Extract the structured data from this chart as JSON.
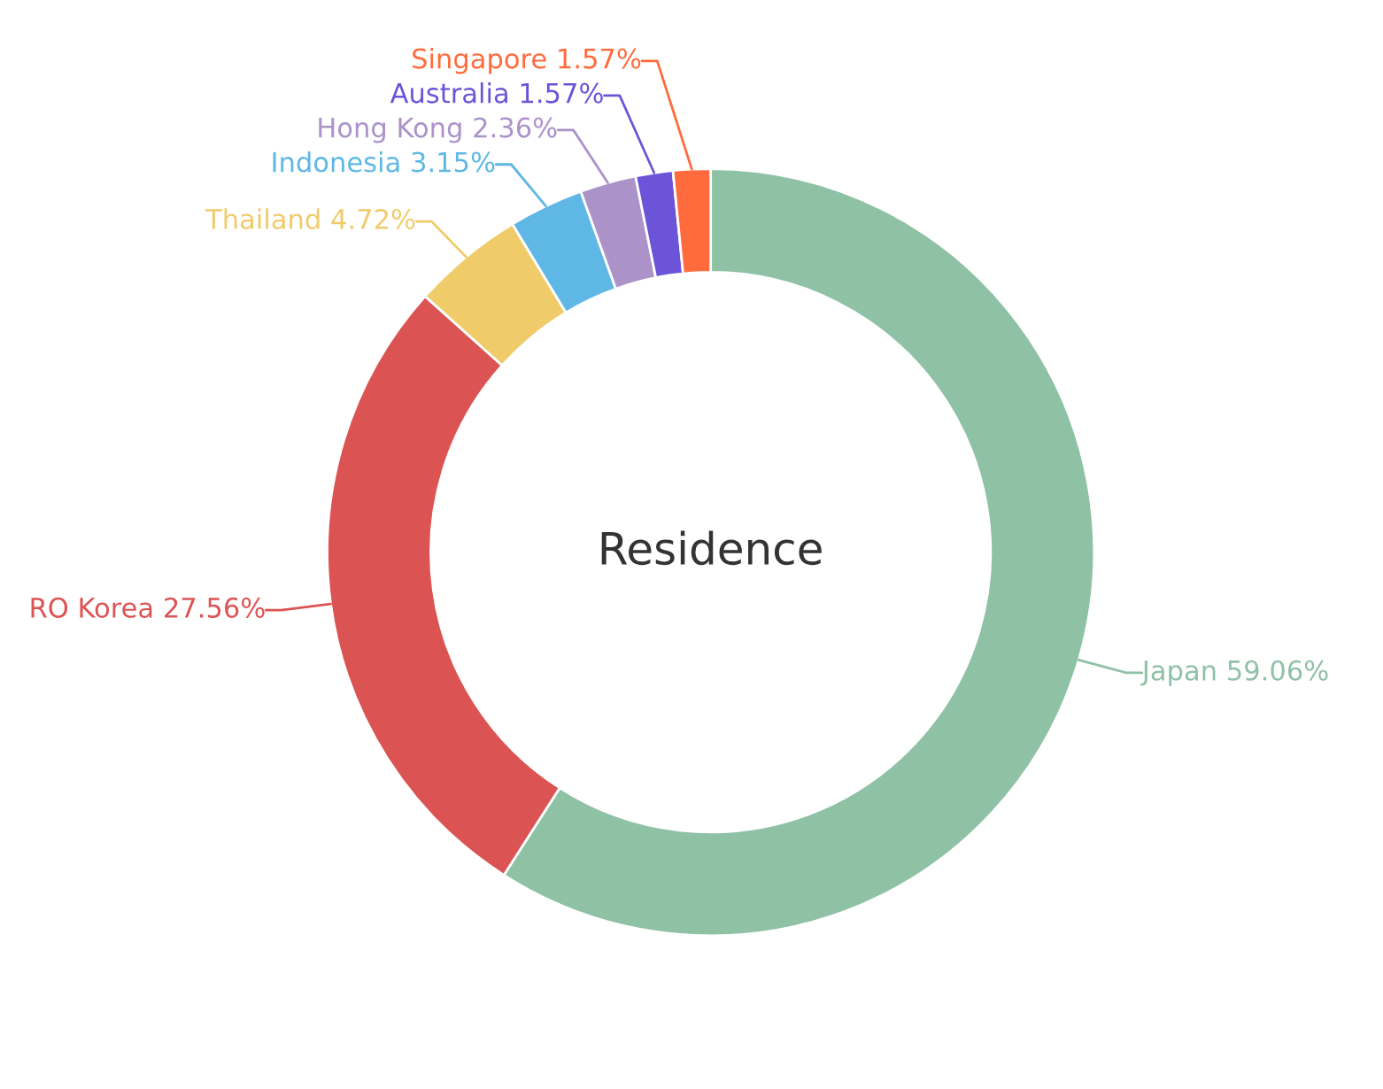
{
  "chart_data": {
    "type": "donut",
    "title": "Residence",
    "categories": [
      "Japan",
      "RO Korea",
      "Thailand",
      "Indonesia",
      "Hong Kong",
      "Australia",
      "Singapore"
    ],
    "values": [
      59.06,
      27.56,
      4.72,
      3.15,
      2.36,
      1.57,
      1.57
    ],
    "value_labels": [
      "59.06%",
      "27.56%",
      "4.72%",
      "3.15%",
      "2.36%",
      "1.57%",
      "1.57%"
    ],
    "colors": [
      "#8fc1a5",
      "#dc5353",
      "#f0cb69",
      "#5fb7e5",
      "#ab92c9",
      "#6c54d8",
      "#ff6b3d"
    ],
    "legend": false
  }
}
